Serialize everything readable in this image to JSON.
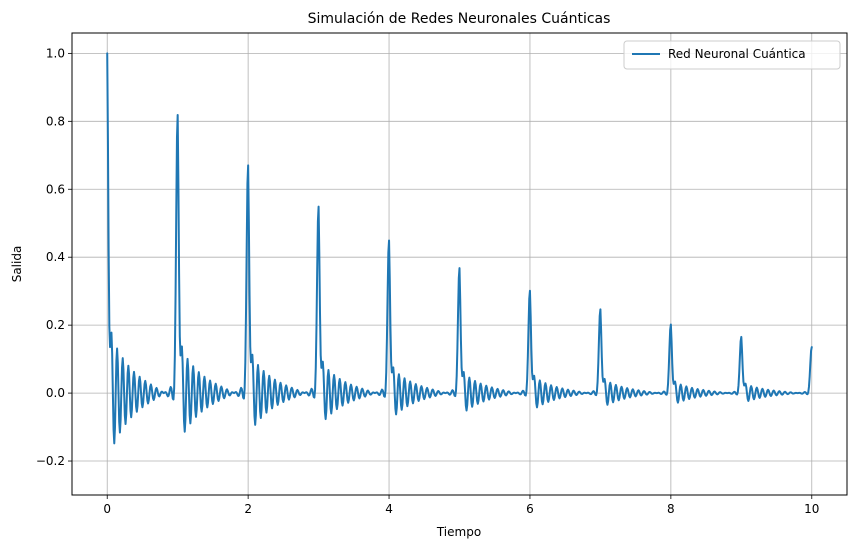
{
  "chart_data": {
    "type": "line",
    "title": "Simulación de Redes Neuronales Cuánticas",
    "xlabel": "Tiempo",
    "ylabel": "Salida",
    "xlim": [
      -0.5,
      10.5
    ],
    "ylim": [
      -0.3,
      1.06
    ],
    "xticks": [
      0,
      2,
      4,
      6,
      8,
      10
    ],
    "yticks": [
      -0.2,
      0.0,
      0.2,
      0.4,
      0.6,
      0.8,
      1.0
    ],
    "xtick_labels": [
      "0",
      "2",
      "4",
      "6",
      "8",
      "10"
    ],
    "ytick_labels": [
      "−0.2",
      "0.0",
      "0.2",
      "0.4",
      "0.6",
      "0.8",
      "1.0"
    ],
    "grid": true,
    "legend_position": "top-right",
    "series": [
      {
        "name": "Red Neuronal Cuántica",
        "color": "#1f77b4",
        "generator": {
          "t_start": 0,
          "t_end": 10,
          "n_points": 1001,
          "pulse_amplitude": 1.0,
          "pulse_decay_rate": 0.2,
          "pulse_period": 1.0,
          "pulse_width": 0.02,
          "oscillation_frequency": 12.5,
          "oscillation_amplitude": 0.2,
          "oscillation_decay": 3.0
        }
      }
    ]
  }
}
